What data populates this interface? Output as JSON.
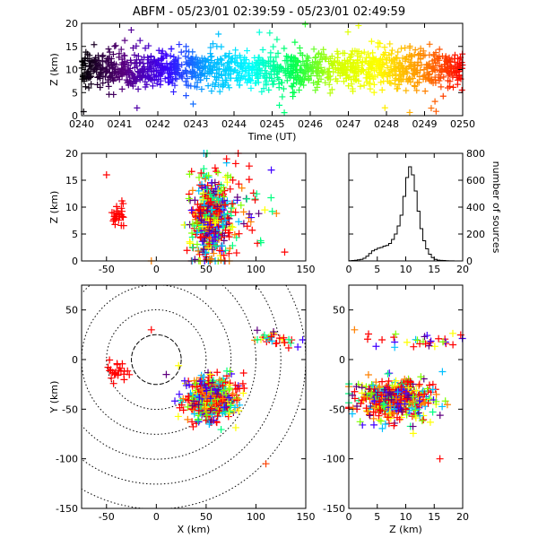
{
  "title": "ABFM - 05/23/01 02:39:59 - 05/23/01 02:49:59",
  "chart_data": [
    {
      "type": "scatter",
      "panel": "time-height",
      "xlabel": "Time (UT)",
      "ylabel": "Z (km)",
      "xlim": [
        "0240",
        "0250"
      ],
      "ylim": [
        0,
        20
      ],
      "x_ticks": [
        "0240",
        "0241",
        "0242",
        "0243",
        "0244",
        "0245",
        "0246",
        "0247",
        "0248",
        "0249",
        "0250"
      ],
      "y_ticks": [
        "0",
        "5",
        "10",
        "15",
        "20"
      ],
      "marker": "plus",
      "color_by": "time",
      "colormap": [
        "#000000",
        "#5a0080",
        "#3a00ff",
        "#00b0ff",
        "#00ffff",
        "#00ff50",
        "#d0ff00",
        "#ffff00",
        "#ff9000",
        "#ff0000"
      ],
      "band_center_km": 10,
      "band_halfwidth_km": 3
    },
    {
      "type": "scatter",
      "panel": "x-z",
      "xlabel": "",
      "ylabel": "Z (km)",
      "xlim": [
        -75,
        150
      ],
      "ylim": [
        0,
        20
      ],
      "x_ticks": [
        "-50",
        "0",
        "50",
        "100",
        "150"
      ],
      "y_ticks": [
        "0",
        "5",
        "10",
        "15",
        "20"
      ],
      "clusters": [
        {
          "x": -38,
          "z": 8.5,
          "sx": 3,
          "sz": 1,
          "n": 25,
          "color": "#ff0000"
        },
        {
          "x": 55,
          "z": 8,
          "sx": 10,
          "sz": 4,
          "n": 500,
          "color": "mixed"
        },
        {
          "x": 95,
          "z": 11,
          "sx": 18,
          "sz": 4,
          "n": 40,
          "color": "mixed"
        }
      ]
    },
    {
      "type": "bar",
      "panel": "histogram",
      "xlabel": "",
      "ylabel": "number of sources",
      "xlim": [
        0,
        20
      ],
      "ylim": [
        0,
        800
      ],
      "x_ticks": [
        "0",
        "5",
        "10",
        "15",
        "20"
      ],
      "y_ticks": [
        "0",
        "200",
        "400",
        "600",
        "800"
      ],
      "bin_width_km": 0.5,
      "bins_start_km": 0,
      "values": [
        2,
        3,
        5,
        8,
        12,
        20,
        35,
        55,
        75,
        85,
        95,
        100,
        110,
        115,
        130,
        160,
        200,
        260,
        340,
        480,
        620,
        700,
        640,
        520,
        370,
        240,
        150,
        90,
        50,
        25,
        12,
        6,
        4,
        3,
        2,
        1,
        1,
        0,
        0,
        0
      ]
    },
    {
      "type": "scatter",
      "panel": "plan-view",
      "xlabel": "X (km)",
      "ylabel": "Y (km)",
      "xlim": [
        -75,
        150
      ],
      "ylim": [
        -150,
        75
      ],
      "x_ticks": [
        "-50",
        "0",
        "50",
        "100",
        "150"
      ],
      "y_ticks": [
        "-150",
        "-100",
        "-50",
        "0",
        "50"
      ],
      "range_rings_km": [
        25,
        50,
        75,
        100,
        125,
        150
      ],
      "clusters": [
        {
          "x": -40,
          "y": -12,
          "sx": 5,
          "sy": 5,
          "n": 25,
          "color": "#ff0000"
        },
        {
          "x": 55,
          "y": -40,
          "sx": 12,
          "sy": 10,
          "n": 500,
          "color": "mixed"
        },
        {
          "x": 120,
          "y": 20,
          "sx": 15,
          "sy": 4,
          "n": 30,
          "color": "mixed"
        }
      ]
    },
    {
      "type": "scatter",
      "panel": "z-y",
      "xlabel": "Z (km)",
      "ylabel": "",
      "xlim": [
        0,
        20
      ],
      "ylim": [
        -150,
        75
      ],
      "x_ticks": [
        "0",
        "5",
        "10",
        "15",
        "20"
      ],
      "y_ticks": [
        "-150",
        "-100",
        "-50",
        "0",
        "50"
      ]
    }
  ]
}
